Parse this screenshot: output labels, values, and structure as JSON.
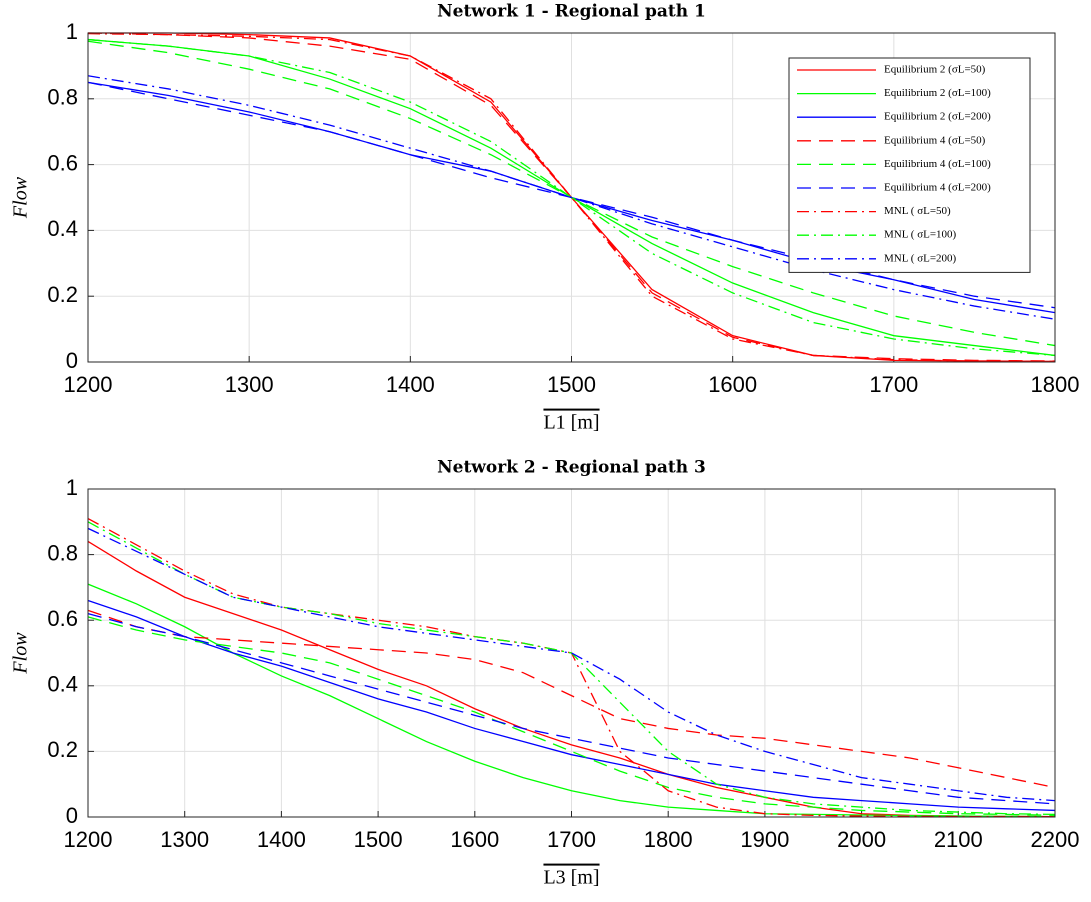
{
  "chart_data": [
    {
      "type": "line",
      "title": "Network 1 - Regional path 1",
      "xlabel": "L1 [m]",
      "ylabel": "Flow",
      "x": [
        1200,
        1250,
        1300,
        1350,
        1400,
        1450,
        1500,
        1550,
        1600,
        1650,
        1700,
        1750,
        1800
      ],
      "xlim": [
        1200,
        1800
      ],
      "xticks": [
        1200,
        1300,
        1400,
        1500,
        1600,
        1700,
        1800
      ],
      "ylim": [
        0,
        1
      ],
      "yticks": [
        0,
        0.2,
        0.4,
        0.6,
        0.8,
        1
      ],
      "grid": true,
      "legend": "upper right",
      "series": [
        {
          "name": "Equilibrium 2 (σL=50)",
          "color": "#ff0000",
          "dash": "solid",
          "values": [
            1,
            1,
            0.995,
            0.985,
            0.93,
            0.79,
            0.5,
            0.22,
            0.08,
            0.02,
            0.005,
            0.003,
            0.002
          ]
        },
        {
          "name": "Equilibrium 2 (σL=100)",
          "color": "#00ff00",
          "dash": "solid",
          "values": [
            0.98,
            0.96,
            0.93,
            0.86,
            0.77,
            0.65,
            0.5,
            0.36,
            0.24,
            0.15,
            0.08,
            0.05,
            0.02
          ]
        },
        {
          "name": "Equilibrium 2 (σL=200)",
          "color": "#0000ff",
          "dash": "solid",
          "values": [
            0.85,
            0.81,
            0.76,
            0.7,
            0.63,
            0.58,
            0.5,
            0.43,
            0.37,
            0.3,
            0.25,
            0.19,
            0.15
          ]
        },
        {
          "name": "Equilibrium 4 (σL=50)",
          "color": "#ff0000",
          "dash": "dashed",
          "values": [
            1,
            0.995,
            0.985,
            0.96,
            0.92,
            0.78,
            0.5,
            0.21,
            0.075,
            0.02,
            0.01,
            0.005,
            0.003
          ]
        },
        {
          "name": "Equilibrium 4 (σL=100)",
          "color": "#00ff00",
          "dash": "dashed",
          "values": [
            0.975,
            0.94,
            0.89,
            0.83,
            0.74,
            0.63,
            0.5,
            0.38,
            0.29,
            0.21,
            0.14,
            0.09,
            0.05
          ]
        },
        {
          "name": "Equilibrium 4 (σL=200)",
          "color": "#0000ff",
          "dash": "dashed",
          "values": [
            0.85,
            0.8,
            0.75,
            0.7,
            0.63,
            0.56,
            0.5,
            0.44,
            0.37,
            0.31,
            0.25,
            0.2,
            0.165
          ]
        },
        {
          "name": "MNL ( σL=50)",
          "color": "#ff0000",
          "dash": "dashdot",
          "values": [
            0.998,
            0.995,
            0.99,
            0.98,
            0.93,
            0.8,
            0.5,
            0.2,
            0.07,
            0.02,
            0.007,
            0.003,
            0.002
          ]
        },
        {
          "name": "MNL ( σL=100)",
          "color": "#00ff00",
          "dash": "dashdot",
          "values": [
            0.98,
            0.96,
            0.93,
            0.88,
            0.79,
            0.67,
            0.5,
            0.33,
            0.21,
            0.12,
            0.07,
            0.04,
            0.02
          ]
        },
        {
          "name": "MNL ( σL=200)",
          "color": "#0000ff",
          "dash": "dashdot",
          "values": [
            0.87,
            0.83,
            0.78,
            0.72,
            0.65,
            0.58,
            0.5,
            0.42,
            0.35,
            0.28,
            0.22,
            0.17,
            0.13
          ]
        }
      ]
    },
    {
      "type": "line",
      "title": "Network 2 - Regional path 3",
      "xlabel": "L3 [m]",
      "ylabel": "Flow",
      "x": [
        1200,
        1250,
        1300,
        1350,
        1400,
        1450,
        1500,
        1550,
        1600,
        1650,
        1700,
        1750,
        1800,
        1850,
        1900,
        1950,
        2000,
        2050,
        2100,
        2150,
        2200
      ],
      "xlim": [
        1200,
        2200
      ],
      "xticks": [
        1200,
        1300,
        1400,
        1500,
        1600,
        1700,
        1800,
        1900,
        2000,
        2100,
        2200
      ],
      "ylim": [
        0,
        1
      ],
      "yticks": [
        0,
        0.2,
        0.4,
        0.6,
        0.8,
        1
      ],
      "grid": true,
      "series": [
        {
          "color": "#ff0000",
          "dash": "solid",
          "values": [
            0.84,
            0.75,
            0.67,
            0.62,
            0.57,
            0.51,
            0.45,
            0.4,
            0.33,
            0.27,
            0.22,
            0.18,
            0.13,
            0.09,
            0.06,
            0.03,
            0.01,
            0.005,
            0.003,
            0.002,
            0.001
          ]
        },
        {
          "color": "#00ff00",
          "dash": "solid",
          "values": [
            0.71,
            0.65,
            0.58,
            0.5,
            0.43,
            0.37,
            0.3,
            0.23,
            0.17,
            0.12,
            0.08,
            0.05,
            0.03,
            0.02,
            0.01,
            0.008,
            0.006,
            0.004,
            0.003,
            0.002,
            0.001
          ]
        },
        {
          "color": "#0000ff",
          "dash": "solid",
          "values": [
            0.66,
            0.61,
            0.55,
            0.5,
            0.46,
            0.41,
            0.36,
            0.32,
            0.27,
            0.23,
            0.19,
            0.16,
            0.13,
            0.1,
            0.08,
            0.06,
            0.05,
            0.04,
            0.03,
            0.025,
            0.02
          ]
        },
        {
          "color": "#ff0000",
          "dash": "dashed",
          "values": [
            0.63,
            0.58,
            0.55,
            0.54,
            0.53,
            0.52,
            0.51,
            0.5,
            0.48,
            0.44,
            0.37,
            0.3,
            0.27,
            0.25,
            0.24,
            0.22,
            0.2,
            0.18,
            0.15,
            0.12,
            0.09
          ]
        },
        {
          "color": "#00ff00",
          "dash": "dashed",
          "values": [
            0.61,
            0.57,
            0.54,
            0.52,
            0.5,
            0.47,
            0.42,
            0.37,
            0.32,
            0.26,
            0.2,
            0.14,
            0.09,
            0.06,
            0.04,
            0.03,
            0.02,
            0.015,
            0.01,
            0.008,
            0.005
          ]
        },
        {
          "color": "#0000ff",
          "dash": "dashed",
          "values": [
            0.62,
            0.58,
            0.55,
            0.51,
            0.47,
            0.43,
            0.39,
            0.35,
            0.31,
            0.27,
            0.24,
            0.21,
            0.18,
            0.16,
            0.14,
            0.12,
            0.1,
            0.08,
            0.06,
            0.05,
            0.04
          ]
        },
        {
          "color": "#ff0000",
          "dash": "dashdot",
          "values": [
            0.91,
            0.83,
            0.75,
            0.68,
            0.64,
            0.62,
            0.6,
            0.58,
            0.55,
            0.53,
            0.5,
            0.2,
            0.08,
            0.03,
            0.01,
            0.005,
            0.003,
            0.002,
            0.001,
            0.001,
            0.001
          ]
        },
        {
          "color": "#00ff00",
          "dash": "dashdot",
          "values": [
            0.9,
            0.82,
            0.74,
            0.67,
            0.64,
            0.62,
            0.59,
            0.57,
            0.55,
            0.53,
            0.5,
            0.35,
            0.2,
            0.1,
            0.06,
            0.04,
            0.03,
            0.02,
            0.015,
            0.01,
            0.008
          ]
        },
        {
          "color": "#0000ff",
          "dash": "dashdot",
          "values": [
            0.88,
            0.81,
            0.74,
            0.67,
            0.64,
            0.61,
            0.58,
            0.56,
            0.54,
            0.52,
            0.5,
            0.42,
            0.32,
            0.25,
            0.2,
            0.16,
            0.12,
            0.1,
            0.08,
            0.06,
            0.05
          ]
        }
      ]
    }
  ]
}
